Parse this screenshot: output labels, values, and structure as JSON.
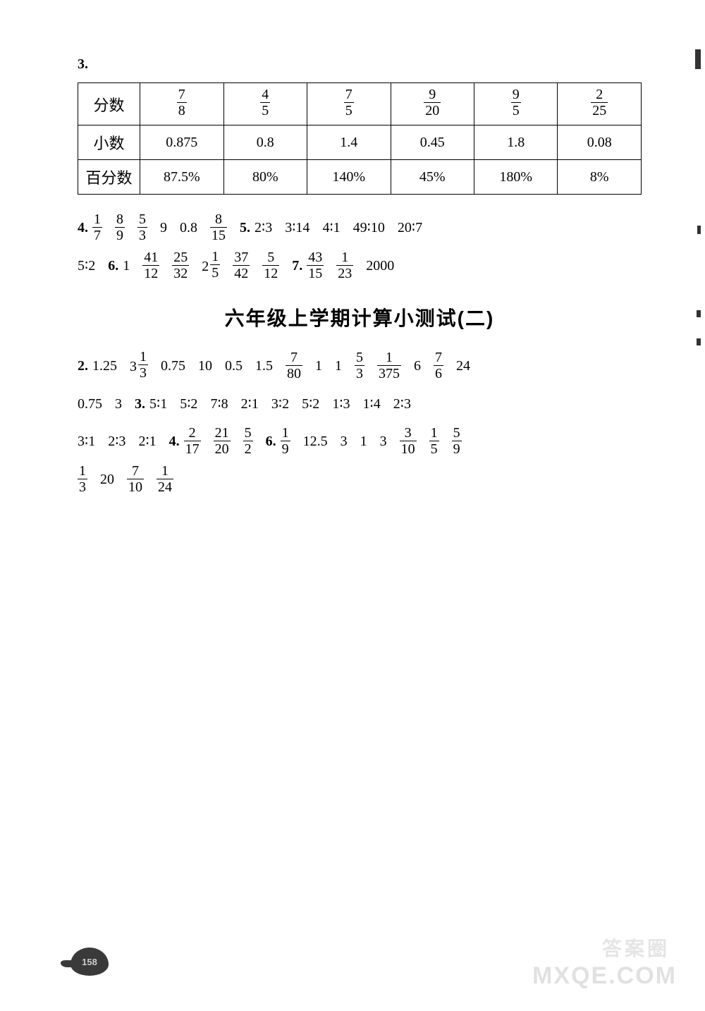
{
  "question3": {
    "number": "3.",
    "table": {
      "rows": [
        {
          "label": "分数",
          "cells": [
            {
              "type": "frac",
              "num": "7",
              "den": "8"
            },
            {
              "type": "frac",
              "num": "4",
              "den": "5"
            },
            {
              "type": "frac",
              "num": "7",
              "den": "5"
            },
            {
              "type": "frac",
              "num": "9",
              "den": "20"
            },
            {
              "type": "frac",
              "num": "9",
              "den": "5"
            },
            {
              "type": "frac",
              "num": "2",
              "den": "25"
            }
          ]
        },
        {
          "label": "小数",
          "cells": [
            {
              "type": "text",
              "val": "0.875"
            },
            {
              "type": "text",
              "val": "0.8"
            },
            {
              "type": "text",
              "val": "1.4"
            },
            {
              "type": "text",
              "val": "0.45"
            },
            {
              "type": "text",
              "val": "1.8"
            },
            {
              "type": "text",
              "val": "0.08"
            }
          ]
        },
        {
          "label": "百分数",
          "cells": [
            {
              "type": "text",
              "val": "87.5%"
            },
            {
              "type": "text",
              "val": "80%"
            },
            {
              "type": "text",
              "val": "140%"
            },
            {
              "type": "text",
              "val": "45%"
            },
            {
              "type": "text",
              "val": "180%"
            },
            {
              "type": "text",
              "val": "8%"
            }
          ]
        }
      ]
    }
  },
  "line1": [
    {
      "type": "qnum",
      "val": "4."
    },
    {
      "type": "frac",
      "num": "1",
      "den": "7"
    },
    {
      "type": "frac",
      "num": "8",
      "den": "9"
    },
    {
      "type": "frac",
      "num": "5",
      "den": "3"
    },
    {
      "type": "text",
      "val": "9"
    },
    {
      "type": "text",
      "val": "0.8"
    },
    {
      "type": "frac",
      "num": "8",
      "den": "15"
    },
    {
      "type": "qnum",
      "val": "5."
    },
    {
      "type": "ratio",
      "val": "2∶3"
    },
    {
      "type": "ratio",
      "val": "3∶14"
    },
    {
      "type": "ratio",
      "val": "4∶1"
    },
    {
      "type": "ratio",
      "val": "49∶10"
    },
    {
      "type": "ratio",
      "val": "20∶7"
    }
  ],
  "line2": [
    {
      "type": "ratio",
      "val": "5∶2"
    },
    {
      "type": "qnum",
      "val": "6."
    },
    {
      "type": "text",
      "val": "1"
    },
    {
      "type": "frac",
      "num": "41",
      "den": "12"
    },
    {
      "type": "frac",
      "num": "25",
      "den": "32"
    },
    {
      "type": "mixed",
      "whole": "2",
      "num": "1",
      "den": "5"
    },
    {
      "type": "frac",
      "num": "37",
      "den": "42"
    },
    {
      "type": "frac",
      "num": "5",
      "den": "12"
    },
    {
      "type": "qnum",
      "val": "7."
    },
    {
      "type": "frac",
      "num": "43",
      "den": "15"
    },
    {
      "type": "frac",
      "num": "1",
      "den": "23"
    },
    {
      "type": "text",
      "val": "2000"
    }
  ],
  "section_title": "六年级上学期计算小测试(二)",
  "line3": [
    {
      "type": "qnum",
      "val": "2."
    },
    {
      "type": "text",
      "val": "1.25"
    },
    {
      "type": "mixed",
      "whole": "3",
      "num": "1",
      "den": "3"
    },
    {
      "type": "text",
      "val": "0.75"
    },
    {
      "type": "text",
      "val": "10"
    },
    {
      "type": "text",
      "val": "0.5"
    },
    {
      "type": "text",
      "val": "1.5"
    },
    {
      "type": "frac",
      "num": "7",
      "den": "80"
    },
    {
      "type": "text",
      "val": "1"
    },
    {
      "type": "text",
      "val": "1"
    },
    {
      "type": "frac",
      "num": "5",
      "den": "3"
    },
    {
      "type": "frac",
      "num": "1",
      "den": "375"
    },
    {
      "type": "text",
      "val": "6"
    },
    {
      "type": "frac",
      "num": "7",
      "den": "6"
    },
    {
      "type": "text",
      "val": "24"
    }
  ],
  "line4": [
    {
      "type": "text",
      "val": "0.75"
    },
    {
      "type": "text",
      "val": "3"
    },
    {
      "type": "qnum",
      "val": "3."
    },
    {
      "type": "ratio",
      "val": "5∶1"
    },
    {
      "type": "ratio",
      "val": "5∶2"
    },
    {
      "type": "ratio",
      "val": "7∶8"
    },
    {
      "type": "ratio",
      "val": "2∶1"
    },
    {
      "type": "ratio",
      "val": "3∶2"
    },
    {
      "type": "ratio",
      "val": "5∶2"
    },
    {
      "type": "ratio",
      "val": "1∶3"
    },
    {
      "type": "ratio",
      "val": "1∶4"
    },
    {
      "type": "ratio",
      "val": "2∶3"
    }
  ],
  "line5": [
    {
      "type": "ratio",
      "val": "3∶1"
    },
    {
      "type": "ratio",
      "val": "2∶3"
    },
    {
      "type": "ratio",
      "val": "2∶1"
    },
    {
      "type": "qnum",
      "val": "4."
    },
    {
      "type": "frac",
      "num": "2",
      "den": "17"
    },
    {
      "type": "frac",
      "num": "21",
      "den": "20"
    },
    {
      "type": "frac",
      "num": "5",
      "den": "2"
    },
    {
      "type": "qnum",
      "val": "6."
    },
    {
      "type": "frac",
      "num": "1",
      "den": "9"
    },
    {
      "type": "text",
      "val": "12.5"
    },
    {
      "type": "text",
      "val": "3"
    },
    {
      "type": "text",
      "val": "1"
    },
    {
      "type": "text",
      "val": "3"
    },
    {
      "type": "frac",
      "num": "3",
      "den": "10"
    },
    {
      "type": "frac",
      "num": "1",
      "den": "5"
    },
    {
      "type": "frac",
      "num": "5",
      "den": "9"
    }
  ],
  "line6": [
    {
      "type": "frac",
      "num": "1",
      "den": "3"
    },
    {
      "type": "text",
      "val": "20"
    },
    {
      "type": "frac",
      "num": "7",
      "den": "10"
    },
    {
      "type": "frac",
      "num": "1",
      "den": "24"
    }
  ],
  "page_number": "158",
  "watermark_cn": "答案圈",
  "watermark_en": "MXQE.COM"
}
